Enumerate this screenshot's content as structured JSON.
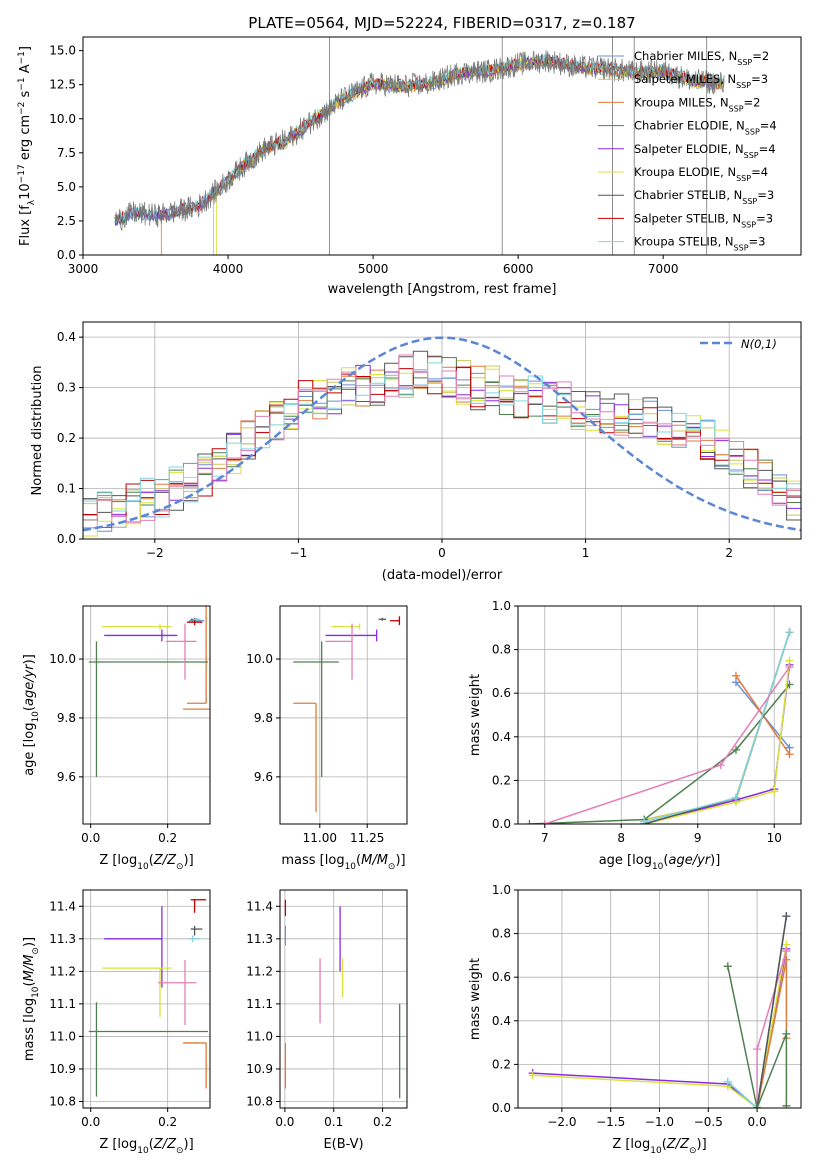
{
  "page": {
    "title": "PLATE=0564, MJD=52224, FIBERID=0317, z=0.187"
  },
  "colors": {
    "chabrier_miles": "#6a8fd6",
    "salpeter_miles": "#c9c95a",
    "kroupa_miles": "#e07b39",
    "chabrier_elodie": "#4f7f4f",
    "salpeter_elodie": "#8a2be2",
    "kroupa_elodie": "#d7e33c",
    "chabrier_stelib": "#555555",
    "salpeter_stelib": "#c00000",
    "kroupa_stelib": "#7fd6e0",
    "pink": "#e37fb8",
    "gaussian": "#5b86d6",
    "grid": "#b0b0b0"
  },
  "chart_data": [
    {
      "id": "spectrum",
      "type": "line",
      "xlabel": "wavelength [Angstrom, rest frame]",
      "ylabel": "Flux [f_λ10^-17 erg cm^-2 s^-1 A^-1]",
      "xlim": [
        3000,
        7950
      ],
      "ylim": [
        0,
        16
      ],
      "xticks": [
        3000,
        4000,
        5000,
        6000,
        7000
      ],
      "yticks": [
        0.0,
        2.5,
        5.0,
        7.5,
        10.0,
        12.5,
        15.0
      ],
      "grid": false,
      "legend": "top-right",
      "legend_entries": [
        {
          "label": "Chabrier MILES, N",
          "sub": "SSP",
          "eq": "=2",
          "color": "chabrier_miles"
        },
        {
          "label": "Salpeter MILES, N",
          "sub": "SSP",
          "eq": "=3",
          "color": "salpeter_miles"
        },
        {
          "label": "Kroupa MILES, N",
          "sub": "SSP",
          "eq": "=2",
          "color": "kroupa_miles"
        },
        {
          "label": "Chabrier ELODIE, N",
          "sub": "SSP",
          "eq": "=4",
          "color": "chabrier_elodie"
        },
        {
          "label": "Salpeter ELODIE, N",
          "sub": "SSP",
          "eq": "=4",
          "color": "salpeter_elodie"
        },
        {
          "label": "Kroupa ELODIE, N",
          "sub": "SSP",
          "eq": "=4",
          "color": "kroupa_elodie"
        },
        {
          "label": "Chabrier STELIB, N",
          "sub": "SSP",
          "eq": "=3",
          "color": "chabrier_stelib"
        },
        {
          "label": "Salpeter STELIB, N",
          "sub": "SSP",
          "eq": "=3",
          "color": "salpeter_stelib"
        },
        {
          "label": "Kroupa STELIB, N",
          "sub": "SSP",
          "eq": "=3",
          "color": "kroupa_stelib"
        }
      ],
      "trend": {
        "x": [
          3220,
          3350,
          3500,
          3650,
          3800,
          3950,
          4100,
          4250,
          4400,
          4600,
          4800,
          5000,
          5200,
          5400,
          5600,
          5800,
          6000,
          6200,
          6400,
          6600,
          6800,
          7000,
          7200,
          7400
        ],
        "y": [
          2.5,
          3.1,
          2.9,
          3.2,
          3.6,
          5.0,
          6.5,
          7.8,
          8.4,
          10.0,
          11.5,
          12.6,
          12.4,
          12.6,
          13.4,
          13.5,
          14.0,
          14.3,
          13.8,
          13.7,
          13.4,
          13.5,
          12.8,
          12.6
        ]
      },
      "data_start": 3220,
      "data_end": 7420,
      "spikes": [
        4700,
        5890,
        6650,
        6800,
        7300
      ],
      "model_starts": {
        "kroupa_miles": 3540,
        "kroupa_elodie": 3920,
        "salpeter_miles": 3900
      }
    },
    {
      "id": "residuals",
      "type": "step",
      "xlabel": "(data-model)/error",
      "ylabel": "Normed distribution",
      "xlim": [
        -2.5,
        2.5
      ],
      "ylim": [
        0,
        0.43
      ],
      "xticks": [
        -2,
        -1,
        0,
        1,
        2
      ],
      "yticks": [
        0.0,
        0.1,
        0.2,
        0.3,
        0.4
      ],
      "grid": true,
      "legend": "top-right",
      "gaussian_label": "N(0,1)",
      "bins": 50,
      "series_base": [
        0.05,
        0.055,
        0.06,
        0.07,
        0.08,
        0.085,
        0.1,
        0.11,
        0.13,
        0.15,
        0.17,
        0.19,
        0.21,
        0.24,
        0.26,
        0.27,
        0.28,
        0.29,
        0.3,
        0.3,
        0.31,
        0.31,
        0.32,
        0.33,
        0.33,
        0.32,
        0.31,
        0.3,
        0.3,
        0.29,
        0.28,
        0.28,
        0.27,
        0.27,
        0.26,
        0.26,
        0.25,
        0.25,
        0.24,
        0.24,
        0.23,
        0.22,
        0.21,
        0.2,
        0.18,
        0.16,
        0.14,
        0.12,
        0.1,
        0.08
      ]
    },
    {
      "id": "age_vs_Z",
      "type": "errorbar",
      "xlabel": "Z [log10(Z/Z⊙)]",
      "ylabel": "age  [log10(age/yr)]",
      "xlim": [
        -0.02,
        0.31
      ],
      "ylim": [
        9.44,
        10.18
      ],
      "xticks": [
        0.0,
        0.2
      ],
      "yticks": [
        9.6,
        9.8,
        10.0
      ],
      "grid": true,
      "points": [
        {
          "x": 0.265,
          "y": 10.13,
          "xerr": [
            0.01,
            0.03
          ],
          "yerr": [
            0.005,
            0.005
          ],
          "color": "chabrier_miles"
        },
        {
          "x": 0.27,
          "y": 10.125,
          "xerr": [
            0.02,
            0.02
          ],
          "yerr": [
            0.01,
            0.01
          ],
          "color": "salpeter_stelib"
        },
        {
          "x": 0.3,
          "y": 9.85,
          "xerr": [
            0.05,
            0.0
          ],
          "yerr": [
            0.0,
            0.37
          ],
          "color": "kroupa_miles"
        },
        {
          "x": 0.24,
          "y": 9.83,
          "xerr": [
            0.0,
            0.07
          ],
          "yerr": [
            0.0,
            0.0
          ],
          "color": "kroupa_miles"
        },
        {
          "x": 0.015,
          "y": 9.99,
          "xerr": [
            0.02,
            0.29
          ],
          "yerr": [
            0.39,
            0.07
          ],
          "color": "chabrier_elodie"
        },
        {
          "x": 0.185,
          "y": 10.08,
          "xerr": [
            0.15,
            0.04
          ],
          "yerr": [
            0.02,
            0.02
          ],
          "color": "salpeter_elodie"
        },
        {
          "x": 0.18,
          "y": 10.11,
          "xerr": [
            0.15,
            0.03
          ],
          "yerr": [
            0.01,
            0.01
          ],
          "color": "kroupa_elodie"
        },
        {
          "x": 0.245,
          "y": 10.06,
          "xerr": [
            0.05,
            0.03
          ],
          "yerr": [
            0.13,
            0.06
          ],
          "color": "pink"
        },
        {
          "x": 0.27,
          "y": 10.135,
          "xerr": [
            0.01,
            0.01
          ],
          "yerr": [
            0.005,
            0.005
          ],
          "color": "chabrier_stelib"
        },
        {
          "x": 0.275,
          "y": 10.135,
          "xerr": [
            0.01,
            0.01
          ],
          "yerr": [
            0.005,
            0.005
          ],
          "color": "kroupa_stelib"
        }
      ]
    },
    {
      "id": "age_vs_mass",
      "type": "errorbar",
      "xlabel": "mass [log10(M/M⊙)]",
      "ylabel": "",
      "xlim": [
        10.79,
        11.46
      ],
      "ylim": [
        9.44,
        10.18
      ],
      "xticks": [
        11.0,
        11.25
      ],
      "yticks": [
        9.6,
        9.8,
        10.0
      ],
      "grid": true,
      "points": [
        {
          "x": 11.01,
          "y": 9.99,
          "xerr": [
            0.15,
            0.09
          ],
          "yerr": [
            0.39,
            0.07
          ],
          "color": "chabrier_elodie"
        },
        {
          "x": 10.98,
          "y": 9.85,
          "xerr": [
            0.12,
            0.0
          ],
          "yerr": [
            0.37,
            0.0
          ],
          "color": "kroupa_miles"
        },
        {
          "x": 11.3,
          "y": 10.08,
          "xerr": [
            0.27,
            0.0
          ],
          "yerr": [
            0.02,
            0.02
          ],
          "color": "salpeter_elodie"
        },
        {
          "x": 11.21,
          "y": 10.11,
          "xerr": [
            0.15,
            0.0
          ],
          "yerr": [
            0.01,
            0.01
          ],
          "color": "kroupa_elodie"
        },
        {
          "x": 11.17,
          "y": 10.06,
          "xerr": [
            0.14,
            0.0
          ],
          "yerr": [
            0.13,
            0.06
          ],
          "color": "pink"
        },
        {
          "x": 11.33,
          "y": 10.135,
          "xerr": [
            0.02,
            0.02
          ],
          "yerr": [
            0.005,
            0.005
          ],
          "color": "chabrier_stelib"
        },
        {
          "x": 11.42,
          "y": 10.13,
          "xerr": [
            0.05,
            0.0
          ],
          "yerr": [
            0.015,
            0.015
          ],
          "color": "salpeter_stelib"
        }
      ]
    },
    {
      "id": "weight_vs_age",
      "type": "line",
      "xlabel": "age  [log10(age/yr)]",
      "ylabel": "mass weight",
      "xlim": [
        6.65,
        10.35
      ],
      "ylim": [
        0,
        1.0
      ],
      "xticks": [
        7,
        8,
        9,
        10
      ],
      "yticks": [
        0.0,
        0.2,
        0.4,
        0.6,
        0.8,
        1.0
      ],
      "grid": true,
      "series": [
        {
          "color": "chabrier_miles",
          "x": [
            9.5,
            10.2
          ],
          "y": [
            0.65,
            0.35
          ]
        },
        {
          "color": "salpeter_miles",
          "x": [
            8.3,
            9.5,
            10.2
          ],
          "y": [
            0.02,
            0.11,
            0.88
          ]
        },
        {
          "color": "kroupa_miles",
          "x": [
            9.5,
            10.2
          ],
          "y": [
            0.68,
            0.32
          ]
        },
        {
          "color": "chabrier_elodie",
          "x": [
            6.8,
            8.3,
            9.5,
            10.2
          ],
          "y": [
            0.0,
            0.02,
            0.34,
            0.64
          ]
        },
        {
          "color": "salpeter_elodie",
          "x": [
            8.3,
            9.5,
            10.0,
            10.2
          ],
          "y": [
            0.0,
            0.11,
            0.16,
            0.73
          ]
        },
        {
          "color": "kroupa_elodie",
          "x": [
            8.3,
            9.5,
            10.0,
            10.2
          ],
          "y": [
            0.0,
            0.1,
            0.15,
            0.75
          ]
        },
        {
          "color": "chabrier_stelib",
          "x": [
            8.3,
            9.5,
            10.2
          ],
          "y": [
            0.0,
            0.12,
            0.88
          ]
        },
        {
          "color": "kroupa_stelib",
          "x": [
            8.3,
            9.5,
            10.2
          ],
          "y": [
            0.01,
            0.12,
            0.88
          ]
        },
        {
          "color": "pink",
          "x": [
            7.0,
            9.3,
            10.2
          ],
          "y": [
            0.0,
            0.27,
            0.72
          ]
        }
      ]
    },
    {
      "id": "mass_vs_Z",
      "type": "errorbar",
      "xlabel": "Z [log10(Z/Z⊙)]",
      "ylabel": "mass [log10(M/M⊙)]",
      "xlim": [
        -0.02,
        0.31
      ],
      "ylim": [
        10.78,
        11.45
      ],
      "xticks": [
        0.0,
        0.2
      ],
      "yticks": [
        10.8,
        10.9,
        11.0,
        11.1,
        11.2,
        11.3,
        11.4
      ],
      "grid": true,
      "points": [
        {
          "x": 0.015,
          "y": 11.015,
          "xerr": [
            0.02,
            0.29
          ],
          "yerr": [
            0.2,
            0.09
          ],
          "color": "chabrier_elodie"
        },
        {
          "x": 0.3,
          "y": 10.98,
          "xerr": [
            0.06,
            0.0
          ],
          "yerr": [
            0.14,
            0.0
          ],
          "color": "kroupa_miles"
        },
        {
          "x": 0.185,
          "y": 11.3,
          "xerr": [
            0.15,
            0.0
          ],
          "yerr": [
            0.15,
            0.1
          ],
          "color": "salpeter_elodie"
        },
        {
          "x": 0.18,
          "y": 11.21,
          "xerr": [
            0.15,
            0.03
          ],
          "yerr": [
            0.15,
            0.0
          ],
          "color": "kroupa_elodie"
        },
        {
          "x": 0.245,
          "y": 11.165,
          "xerr": [
            0.07,
            0.03
          ],
          "yerr": [
            0.13,
            0.07
          ],
          "color": "pink"
        },
        {
          "x": 0.27,
          "y": 11.33,
          "xerr": [
            0.01,
            0.02
          ],
          "yerr": [
            0.02,
            0.01
          ],
          "color": "chabrier_stelib"
        },
        {
          "x": 0.27,
          "y": 11.42,
          "xerr": [
            0.01,
            0.03
          ],
          "yerr": [
            0.04,
            0.0
          ],
          "color": "salpeter_stelib"
        },
        {
          "x": 0.265,
          "y": 11.3,
          "xerr": [
            0.01,
            0.02
          ],
          "yerr": [
            0.01,
            0.01
          ],
          "color": "kroupa_stelib"
        }
      ]
    },
    {
      "id": "mass_vs_ebv",
      "type": "errorbar",
      "xlabel": "E(B-V)",
      "ylabel": "",
      "xlim": [
        -0.01,
        0.25
      ],
      "ylim": [
        10.78,
        11.45
      ],
      "xticks": [
        0.0,
        0.1,
        0.2
      ],
      "yticks": [
        10.8,
        10.9,
        11.0,
        11.1,
        11.2,
        11.3,
        11.4
      ],
      "grid": true,
      "points": [
        {
          "x": 0.235,
          "y": 11.0,
          "xerr": [
            0,
            0
          ],
          "yerr": [
            0.19,
            0.1
          ],
          "color": "chabrier_elodie"
        },
        {
          "x": 0.001,
          "y": 10.92,
          "xerr": [
            0,
            0
          ],
          "yerr": [
            0.08,
            0.06
          ],
          "color": "kroupa_miles"
        },
        {
          "x": 0.113,
          "y": 11.3,
          "xerr": [
            0,
            0
          ],
          "yerr": [
            0.1,
            0.1
          ],
          "color": "salpeter_elodie"
        },
        {
          "x": 0.118,
          "y": 11.18,
          "xerr": [
            0,
            0
          ],
          "yerr": [
            0.06,
            0.06
          ],
          "color": "kroupa_elodie"
        },
        {
          "x": 0.072,
          "y": 11.14,
          "xerr": [
            0,
            0
          ],
          "yerr": [
            0.1,
            0.1
          ],
          "color": "pink"
        },
        {
          "x": 0.001,
          "y": 11.4,
          "xerr": [
            0,
            0
          ],
          "yerr": [
            0.03,
            0.02
          ],
          "color": "salpeter_stelib"
        },
        {
          "x": 0.001,
          "y": 11.31,
          "xerr": [
            0,
            0
          ],
          "yerr": [
            0.03,
            0.03
          ],
          "color": "chabrier_miles"
        }
      ]
    },
    {
      "id": "weight_vs_Z",
      "type": "line",
      "xlabel": "Z [log10(Z/Z⊙)]",
      "ylabel": "mass weight",
      "xlim": [
        -2.45,
        0.45
      ],
      "ylim": [
        0,
        1.0
      ],
      "xticks": [
        -2.0,
        -1.5,
        -1.0,
        -0.5,
        0.0
      ],
      "yticks": [
        0.0,
        0.2,
        0.4,
        0.6,
        0.8,
        1.0
      ],
      "grid": true,
      "series": [
        {
          "color": "salpeter_elodie",
          "x": [
            -2.3,
            -0.3,
            0.0,
            0.3
          ],
          "y": [
            0.16,
            0.11,
            0.0,
            0.73
          ]
        },
        {
          "color": "kroupa_elodie",
          "x": [
            -2.3,
            -0.3,
            0.0,
            0.3
          ],
          "y": [
            0.15,
            0.1,
            0.0,
            0.75
          ]
        },
        {
          "color": "chabrier_miles",
          "x": [
            -0.3,
            0.0,
            0.3
          ],
          "y": [
            0.12,
            0.0,
            0.88
          ]
        },
        {
          "color": "kroupa_stelib",
          "x": [
            -0.3,
            0.0,
            0.3
          ],
          "y": [
            0.12,
            0.0,
            0.88
          ]
        },
        {
          "color": "kroupa_miles",
          "x": [
            0.0,
            0.3,
            0.3
          ],
          "y": [
            0.0,
            0.68,
            0.32
          ]
        },
        {
          "color": "pink",
          "x": [
            0.0,
            0.0,
            0.3
          ],
          "y": [
            0.0,
            0.27,
            0.72
          ]
        },
        {
          "color": "chabrier_stelib",
          "x": [
            0.0,
            0.3
          ],
          "y": [
            0.0,
            0.88
          ]
        },
        {
          "color": "chabrier_elodie",
          "x": [
            -0.3,
            0.0,
            0.3,
            0.3
          ],
          "y": [
            0.65,
            0.0,
            0.34,
            0.01
          ]
        }
      ]
    }
  ]
}
